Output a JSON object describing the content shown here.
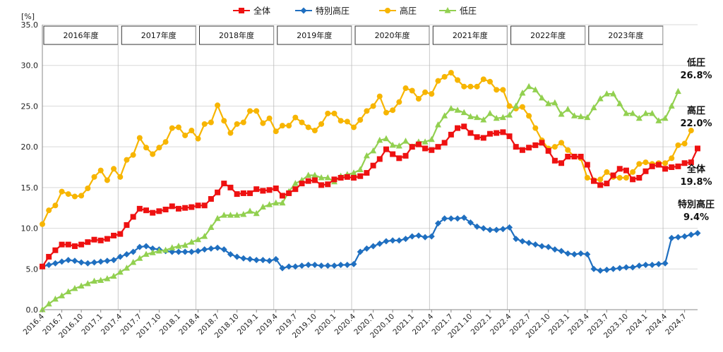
{
  "chart_data": {
    "type": "line",
    "ylabel": "[%]",
    "ylim": [
      0,
      35
    ],
    "yticks": [
      "0.0",
      "5.0",
      "10.0",
      "15.0",
      "20.0",
      "25.0",
      "30.0",
      "35.0"
    ],
    "grid": "horizontal",
    "legend_position": "top",
    "x_labels": [
      "2016.4",
      "2016.7",
      "2016.10",
      "2017.1",
      "2017.4",
      "2017.7",
      "2017.10",
      "2018.1",
      "2018.4",
      "2018.7",
      "2018.10",
      "2019.1",
      "2019.4",
      "2019.7",
      "2019.10",
      "2020.1",
      "2020.4",
      "2020.7",
      "2020.10",
      "2021.1",
      "2021.4",
      "2021.7",
      "2021.10",
      "2022.1",
      "2022.4",
      "2022.7",
      "2022.10",
      "2023.1",
      "2023.4",
      "2023.7",
      "2023.10",
      "2024.1",
      "2024.4",
      "2024.7"
    ],
    "fiscal_years": [
      "2016年度",
      "2017年度",
      "2018年度",
      "2019年度",
      "2020年度",
      "2021年度",
      "2022年度",
      "2023年度"
    ],
    "series": [
      {
        "name": "全体",
        "color": "#ee1111",
        "marker": "square",
        "end_label": [
          "全体",
          "19.8%"
        ],
        "values": [
          5.3,
          6.5,
          7.3,
          8.0,
          8.0,
          7.8,
          8.0,
          8.3,
          8.6,
          8.5,
          8.7,
          9.1,
          9.3,
          10.4,
          11.4,
          12.4,
          12.2,
          11.9,
          12.1,
          12.3,
          12.7,
          12.4,
          12.5,
          12.6,
          12.8,
          12.8,
          13.6,
          14.4,
          15.5,
          15.0,
          14.2,
          14.3,
          14.3,
          14.8,
          14.6,
          14.7,
          14.9,
          14.0,
          14.3,
          14.8,
          15.5,
          15.8,
          15.9,
          15.3,
          15.4,
          16.0,
          16.2,
          16.3,
          16.2,
          16.4,
          16.8,
          17.7,
          18.5,
          19.7,
          19.1,
          18.6,
          18.9,
          20.0,
          20.3,
          19.8,
          19.6,
          20.0,
          20.5,
          21.5,
          22.3,
          22.5,
          21.7,
          21.2,
          21.1,
          21.6,
          21.7,
          21.8,
          21.3,
          20.0,
          19.6,
          19.9,
          20.2,
          20.5,
          19.5,
          18.3,
          18.0,
          18.8,
          18.8,
          18.8,
          17.8,
          15.8,
          15.3,
          15.5,
          16.5,
          17.3,
          17.1,
          16.0,
          16.2,
          17.0,
          17.6,
          17.8,
          17.3,
          17.5,
          17.6,
          18.0,
          18.1,
          19.8
        ]
      },
      {
        "name": "特別高圧",
        "color": "#1f6fc0",
        "marker": "diamond",
        "end_label": [
          "特別高圧",
          "9.4%"
        ],
        "values": [
          5.3,
          5.5,
          5.7,
          5.9,
          6.1,
          6.0,
          5.8,
          5.7,
          5.8,
          5.9,
          6.0,
          6.1,
          6.5,
          6.8,
          7.1,
          7.7,
          7.8,
          7.5,
          7.4,
          7.2,
          7.1,
          7.1,
          7.1,
          7.1,
          7.2,
          7.4,
          7.5,
          7.6,
          7.4,
          6.8,
          6.5,
          6.3,
          6.2,
          6.1,
          6.1,
          6.0,
          6.2,
          5.1,
          5.3,
          5.3,
          5.4,
          5.5,
          5.5,
          5.4,
          5.4,
          5.4,
          5.5,
          5.5,
          5.6,
          7.1,
          7.5,
          7.8,
          8.1,
          8.4,
          8.5,
          8.5,
          8.7,
          9.0,
          9.1,
          8.9,
          9.0,
          10.6,
          11.2,
          11.2,
          11.2,
          11.3,
          10.7,
          10.2,
          10.0,
          9.8,
          9.8,
          9.9,
          10.1,
          8.7,
          8.4,
          8.2,
          8.0,
          7.8,
          7.7,
          7.4,
          7.2,
          6.9,
          6.8,
          6.9,
          6.8,
          5.0,
          4.8,
          4.9,
          5.0,
          5.1,
          5.2,
          5.2,
          5.4,
          5.5,
          5.5,
          5.6,
          5.7,
          8.8,
          8.9,
          9.0,
          9.2,
          9.4
        ]
      },
      {
        "name": "高圧",
        "color": "#f7b500",
        "marker": "circle",
        "end_label": [
          "高圧",
          "22.0%"
        ],
        "values": [
          10.5,
          12.2,
          12.8,
          14.5,
          14.2,
          13.9,
          14.0,
          14.9,
          16.3,
          17.1,
          15.9,
          17.3,
          16.3,
          18.4,
          19.0,
          21.1,
          19.9,
          19.1,
          19.9,
          20.6,
          22.3,
          22.4,
          21.4,
          22.0,
          21.0,
          22.8,
          23.0,
          25.1,
          23.2,
          21.7,
          22.8,
          23.0,
          24.4,
          24.4,
          22.9,
          23.5,
          21.9,
          22.6,
          22.6,
          23.6,
          23.0,
          22.4,
          22.0,
          22.8,
          24.1,
          24.1,
          23.2,
          23.1,
          22.4,
          23.3,
          24.4,
          25.0,
          26.2,
          24.2,
          24.5,
          25.5,
          27.2,
          26.9,
          25.9,
          26.7,
          26.5,
          28.1,
          28.6,
          29.1,
          28.2,
          27.4,
          27.4,
          27.4,
          28.3,
          28.0,
          27.0,
          27.0,
          25.0,
          24.7,
          24.9,
          23.8,
          22.3,
          20.8,
          19.8,
          20.0,
          20.5,
          19.6,
          18.8,
          18.6,
          16.2,
          15.9,
          16.0,
          16.9,
          16.3,
          16.2,
          16.2,
          16.9,
          17.9,
          18.1,
          17.9,
          18.0,
          18.0,
          18.6,
          20.2,
          20.4,
          22.0
        ]
      },
      {
        "name": "低圧",
        "color": "#92d050",
        "marker": "triangle",
        "end_label": [
          "低圧",
          "26.8%"
        ],
        "values": [
          0.0,
          0.7,
          1.3,
          1.7,
          2.2,
          2.6,
          2.9,
          3.2,
          3.5,
          3.6,
          3.8,
          4.1,
          4.6,
          5.1,
          5.8,
          6.3,
          6.8,
          7.0,
          7.2,
          7.3,
          7.6,
          7.8,
          7.9,
          8.3,
          8.6,
          9.0,
          10.1,
          11.2,
          11.6,
          11.6,
          11.6,
          11.7,
          12.1,
          11.8,
          12.6,
          12.9,
          13.1,
          13.1,
          14.5,
          15.5,
          15.9,
          16.5,
          16.5,
          16.2,
          16.2,
          15.7,
          16.4,
          16.6,
          16.8,
          17.2,
          18.9,
          19.5,
          20.8,
          21.0,
          20.2,
          20.1,
          20.7,
          20.0,
          20.6,
          20.6,
          20.9,
          22.7,
          23.8,
          24.7,
          24.5,
          24.2,
          23.7,
          23.6,
          23.3,
          24.1,
          23.5,
          23.6,
          23.9,
          25.0,
          26.6,
          27.4,
          27.0,
          26.0,
          25.3,
          25.4,
          24.0,
          24.6,
          23.8,
          23.7,
          23.6,
          24.8,
          25.9,
          26.5,
          26.5,
          25.3,
          24.1,
          24.1,
          23.5,
          24.1,
          24.1,
          23.2,
          23.5,
          25.0,
          26.8
        ]
      }
    ]
  }
}
